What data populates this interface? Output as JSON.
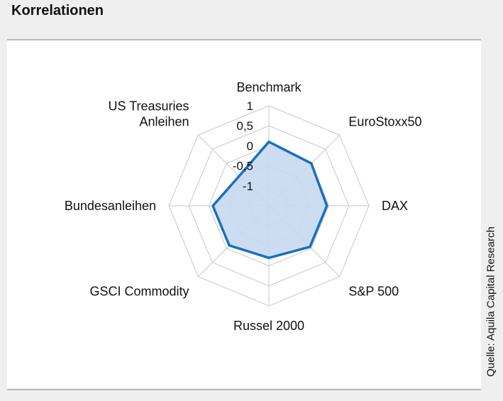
{
  "title": "Korrelationen",
  "source": "Quelle: Aquila Capital Research",
  "chart_data": {
    "type": "radar",
    "title": "Korrelationen",
    "categories": [
      "Benchmark",
      "EuroStoxx50",
      "DAX",
      "S&P 500",
      "Russel 2000",
      "GSCI Commodity",
      "Bundesanleihen",
      "US Treasuries Anleihen"
    ],
    "category_lines": [
      [
        "Benchmark"
      ],
      [
        "EuroStoxx50"
      ],
      [
        "DAX"
      ],
      [
        "S&P 500"
      ],
      [
        "Russel 2000"
      ],
      [
        "GSCI Commodity"
      ],
      [
        "Bundesanleihen"
      ],
      [
        "US Treasuries",
        "Anleihen"
      ]
    ],
    "values": [
      0.1,
      0.0,
      -0.05,
      -0.05,
      -0.2,
      -0.1,
      -0.1,
      -0.45
    ],
    "radial_ticks": [
      1,
      0.5,
      0,
      -0.5,
      -1
    ],
    "radial_tick_labels": [
      "1",
      "0,5",
      "0",
      "-0,5",
      "-1"
    ],
    "rlim": [
      -1.5,
      1
    ],
    "grid": true,
    "legend": "none",
    "colors": {
      "line": "#1a6fbf",
      "fill": "#c6d9f1",
      "grid": "#c8c8c8"
    }
  }
}
